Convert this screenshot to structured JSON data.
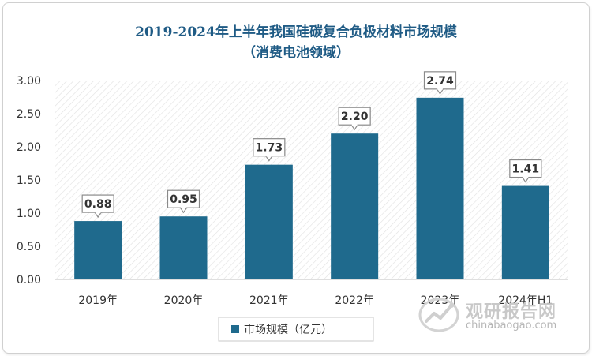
{
  "title_line1": "2019-2024年上半年我国硅碳复合负极材料市场规模",
  "title_line2": "（消费电池领域）",
  "colors": {
    "bar": "#1f6a8d",
    "title": "#1f5b85"
  },
  "watermark": {
    "cn": "观研报告网",
    "en": "chinabaogao.com"
  },
  "chart_data": {
    "type": "bar",
    "title": "2019-2024年上半年我国硅碳复合负极材料市场规模（消费电池领域）",
    "categories": [
      "2019年",
      "2020年",
      "2021年",
      "2022年",
      "2023年",
      "2024年H1"
    ],
    "series": [
      {
        "name": "市场规模（亿元）",
        "values": [
          0.88,
          0.95,
          1.73,
          2.2,
          2.74,
          1.41
        ]
      }
    ],
    "value_labels": [
      "0.88",
      "0.95",
      "1.73",
      "2.20",
      "2.74",
      "1.41"
    ],
    "yticks": [
      "0.00",
      "0.50",
      "1.00",
      "1.50",
      "2.00",
      "2.50",
      "3.00"
    ],
    "ylim": [
      0,
      3
    ],
    "xlabel": "",
    "ylabel": "",
    "legend_position": "bottom"
  }
}
